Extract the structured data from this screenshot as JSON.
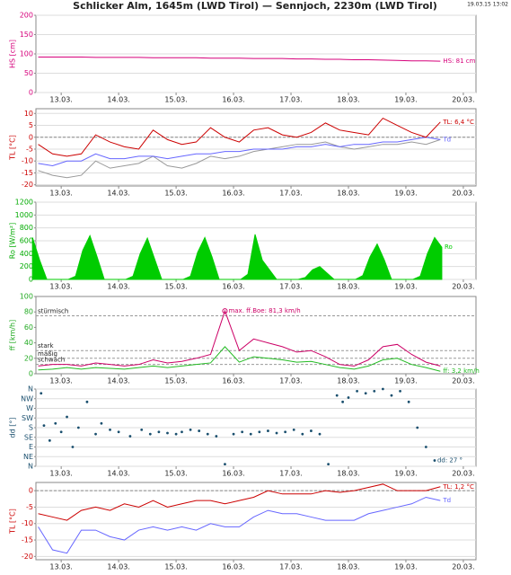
{
  "title": "Schlicker Alm, 1645m (LWD Tirol) — Sennjoch, 2230m (LWD Tirol)",
  "timestamp": "19.03.15 13:02",
  "chart_data": [
    {
      "type": "line",
      "ylabel": "HS [cm]",
      "label_color": "#d6007b",
      "x": [
        12.6,
        12.85,
        13.1,
        13.35,
        13.6,
        13.85,
        14.1,
        14.35,
        14.6,
        14.85,
        15.1,
        15.35,
        15.6,
        15.85,
        16.1,
        16.35,
        16.6,
        16.85,
        17.1,
        17.35,
        17.6,
        17.85,
        18.1,
        18.35,
        18.6,
        18.85,
        19.1,
        19.35,
        19.6
      ],
      "series": [
        {
          "color": "#d6007b",
          "end_label": "HS: 81 cm",
          "values": [
            92,
            92,
            92,
            92,
            91,
            91,
            91,
            91,
            90,
            90,
            90,
            90,
            89,
            89,
            89,
            88,
            88,
            88,
            87,
            87,
            86,
            86,
            85,
            85,
            84,
            83,
            82,
            82,
            81
          ]
        }
      ],
      "xlim": [
        12.56,
        20.22
      ],
      "ylim": [
        0,
        200
      ],
      "yticks": [
        0,
        50,
        100,
        150,
        200
      ],
      "xticks": [
        {
          "value": 13,
          "label": "13.03."
        },
        {
          "value": 14,
          "label": "14.03."
        },
        {
          "value": 15,
          "label": "15.03."
        },
        {
          "value": 16,
          "label": "16.03."
        },
        {
          "value": 17,
          "label": "17.03."
        },
        {
          "value": 18,
          "label": "18.03."
        },
        {
          "value": 19,
          "label": "19.03."
        },
        {
          "value": 20,
          "label": "20.03."
        }
      ],
      "grid": true
    },
    {
      "type": "line",
      "ylabel": "TL [°C]",
      "label_color": "#cc0000",
      "x": [
        12.6,
        12.85,
        13.1,
        13.35,
        13.6,
        13.85,
        14.1,
        14.35,
        14.6,
        14.85,
        15.1,
        15.35,
        15.6,
        15.85,
        16.1,
        16.35,
        16.6,
        16.85,
        17.1,
        17.35,
        17.6,
        17.85,
        18.1,
        18.35,
        18.6,
        18.85,
        19.1,
        19.35,
        19.6
      ],
      "series": [
        {
          "color": "#999999",
          "values": [
            -14,
            -16,
            -17,
            -16,
            -10,
            -13,
            -12,
            -11,
            -8,
            -12,
            -13,
            -11,
            -8,
            -9,
            -8,
            -6,
            -5,
            -4,
            -3,
            -3,
            -2,
            -4,
            -5,
            -4,
            -3,
            -3,
            -2,
            -3,
            -1
          ]
        },
        {
          "color": "#6666ff",
          "end_label": "Td",
          "values": [
            -11,
            -12,
            -10,
            -10,
            -7,
            -9,
            -9,
            -8,
            -8,
            -9,
            -8,
            -7,
            -7,
            -6,
            -6,
            -5,
            -5,
            -5,
            -4,
            -4,
            -3,
            -4,
            -3,
            -3,
            -2,
            -2,
            -1,
            0,
            -1
          ]
        },
        {
          "color": "#cc0000",
          "end_label": "TL: 6,4 °C",
          "values": [
            -3,
            -7,
            -8,
            -7,
            1,
            -2,
            -4,
            -5,
            3,
            -1,
            -3,
            -2,
            4,
            0,
            -2,
            3,
            4,
            1,
            0,
            2,
            6,
            3,
            2,
            1,
            8,
            5,
            2,
            0,
            6.4
          ]
        }
      ],
      "xlim": [
        12.56,
        20.22
      ],
      "ylim": [
        -20.5,
        12
      ],
      "yticks": [
        -20,
        -15,
        -10,
        -5,
        0,
        5,
        10
      ],
      "xticks": [
        {
          "value": 13,
          "label": "13.03."
        },
        {
          "value": 14,
          "label": "14.03."
        },
        {
          "value": 15,
          "label": "15.03."
        },
        {
          "value": 16,
          "label": "16.03."
        },
        {
          "value": 17,
          "label": "17.03."
        },
        {
          "value": 18,
          "label": "18.03."
        },
        {
          "value": 19,
          "label": "19.03."
        },
        {
          "value": 20,
          "label": "20.03."
        }
      ],
      "grid": true,
      "zero_line": true
    },
    {
      "type": "area",
      "ylabel": "Ro [W/m²]",
      "label_color": "#00aa00",
      "x": [
        12.5,
        12.625,
        12.75,
        12.875,
        13,
        13.125,
        13.25,
        13.375,
        13.5,
        13.625,
        13.75,
        13.875,
        14,
        14.125,
        14.25,
        14.375,
        14.5,
        14.625,
        14.75,
        14.875,
        15,
        15.125,
        15.25,
        15.375,
        15.5,
        15.625,
        15.75,
        15.875,
        16,
        16.125,
        16.25,
        16.375,
        16.5,
        16.625,
        16.75,
        16.875,
        17,
        17.125,
        17.25,
        17.375,
        17.5,
        17.625,
        17.75,
        17.875,
        18,
        18.125,
        18.25,
        18.375,
        18.5,
        18.625,
        18.75,
        18.875,
        19,
        19.125,
        19.25,
        19.375,
        19.5,
        19.625
      ],
      "series": [
        {
          "color": "#00cc00",
          "end_label": "Ro",
          "values": [
            650,
            300,
            0,
            0,
            0,
            0,
            50,
            450,
            680,
            350,
            0,
            0,
            0,
            0,
            50,
            400,
            640,
            320,
            0,
            0,
            0,
            0,
            50,
            420,
            650,
            350,
            0,
            0,
            0,
            0,
            80,
            700,
            300,
            150,
            0,
            0,
            0,
            0,
            30,
            150,
            200,
            100,
            0,
            0,
            0,
            0,
            60,
            350,
            550,
            300,
            0,
            0,
            0,
            0,
            50,
            400,
            650,
            500
          ]
        }
      ],
      "xlim": [
        12.56,
        20.22
      ],
      "ylim": [
        0,
        1200
      ],
      "yticks": [
        0,
        200,
        400,
        600,
        800,
        1000,
        1200
      ],
      "xticks": [
        {
          "value": 13,
          "label": "13.03."
        },
        {
          "value": 14,
          "label": "14.03."
        },
        {
          "value": 15,
          "label": "15.03."
        },
        {
          "value": 16,
          "label": "16.03."
        },
        {
          "value": 17,
          "label": "17.03."
        },
        {
          "value": 18,
          "label": "18.03."
        },
        {
          "value": 19,
          "label": "19.03."
        },
        {
          "value": 20,
          "label": "20.03."
        }
      ],
      "grid": true
    },
    {
      "type": "line",
      "ylabel": "ff [km/h]",
      "label_color": "#22aa22",
      "x": [
        12.6,
        12.85,
        13.1,
        13.35,
        13.6,
        13.85,
        14.1,
        14.35,
        14.6,
        14.85,
        15.1,
        15.35,
        15.6,
        15.85,
        16.1,
        16.35,
        16.6,
        16.85,
        17.1,
        17.35,
        17.6,
        17.85,
        18.1,
        18.35,
        18.6,
        18.85,
        19.1,
        19.35,
        19.6
      ],
      "series": [
        {
          "color": "#cc0066",
          "max_label": "max. ff.Boe: 81,3 km/h",
          "values": [
            10,
            12,
            12,
            10,
            14,
            12,
            10,
            12,
            18,
            14,
            16,
            20,
            25,
            81.3,
            30,
            45,
            40,
            35,
            28,
            30,
            22,
            12,
            10,
            18,
            35,
            38,
            25,
            15,
            10
          ]
        },
        {
          "color": "#22bb22",
          "end_label": "ff: 3,2 km/h",
          "values": [
            5,
            6,
            8,
            6,
            8,
            7,
            6,
            8,
            10,
            8,
            10,
            12,
            14,
            35,
            15,
            22,
            20,
            18,
            15,
            16,
            12,
            8,
            6,
            10,
            18,
            20,
            12,
            8,
            3.2
          ]
        }
      ],
      "thresholds": [
        {
          "value": 75,
          "label": "stürmisch"
        },
        {
          "value": 30,
          "label": "stark"
        },
        {
          "value": 20,
          "label": "mäßig"
        },
        {
          "value": 12,
          "label": "schwach"
        }
      ],
      "xlim": [
        12.56,
        20.22
      ],
      "ylim": [
        0,
        100
      ],
      "yticks": [
        0,
        20,
        40,
        60,
        80,
        100
      ],
      "xticks": [
        {
          "value": 13,
          "label": "13.03."
        },
        {
          "value": 14,
          "label": "14.03."
        },
        {
          "value": 15,
          "label": "15.03."
        },
        {
          "value": 16,
          "label": "16.03."
        },
        {
          "value": 17,
          "label": "17.03."
        },
        {
          "value": 18,
          "label": "18.03."
        },
        {
          "value": 19,
          "label": "19.03."
        },
        {
          "value": 20,
          "label": "20.03."
        }
      ],
      "grid": false
    },
    {
      "type": "scatter",
      "ylabel": "dd [°]",
      "label_color": "#1a4f6e",
      "x": [
        12.65,
        12.7,
        12.8,
        12.9,
        13.0,
        13.1,
        13.2,
        13.3,
        13.45,
        13.6,
        13.7,
        13.85,
        14.0,
        14.2,
        14.4,
        14.55,
        14.7,
        14.85,
        15.0,
        15.1,
        15.25,
        15.4,
        15.55,
        15.7,
        15.85,
        16.0,
        16.15,
        16.3,
        16.45,
        16.6,
        16.75,
        16.9,
        17.05,
        17.2,
        17.35,
        17.5,
        17.65,
        17.8,
        17.9,
        18.0,
        18.15,
        18.3,
        18.45,
        18.6,
        18.75,
        18.9,
        19.05,
        19.2,
        19.35,
        19.5
      ],
      "series": [
        {
          "color": "#1a4f6e",
          "end_label": "dd: 27 °",
          "values": [
            340,
            190,
            120,
            200,
            160,
            230,
            90,
            180,
            300,
            150,
            200,
            170,
            160,
            140,
            170,
            150,
            160,
            155,
            150,
            160,
            170,
            165,
            150,
            140,
            10,
            150,
            160,
            150,
            160,
            165,
            155,
            160,
            170,
            150,
            165,
            150,
            10,
            330,
            300,
            320,
            350,
            340,
            350,
            360,
            330,
            350,
            300,
            180,
            90,
            27
          ]
        }
      ],
      "xlim": [
        12.56,
        20.22
      ],
      "ylim": [
        0,
        360
      ],
      "yticks": [
        {
          "value": 0,
          "label": "N"
        },
        {
          "value": 45,
          "label": "NE"
        },
        {
          "value": 90,
          "label": "E"
        },
        {
          "value": 135,
          "label": "SE"
        },
        {
          "value": 180,
          "label": "S"
        },
        {
          "value": 225,
          "label": "SW"
        },
        {
          "value": 270,
          "label": "W"
        },
        {
          "value": 315,
          "label": "NW"
        },
        {
          "value": 360,
          "label": "N"
        }
      ],
      "xticks": [
        {
          "value": 13,
          "label": "13.03."
        },
        {
          "value": 14,
          "label": "14.03."
        },
        {
          "value": 15,
          "label": "15.03."
        },
        {
          "value": 16,
          "label": "16.03."
        },
        {
          "value": 17,
          "label": "17.03."
        },
        {
          "value": 18,
          "label": "18.03."
        },
        {
          "value": 19,
          "label": "19.03."
        },
        {
          "value": 20,
          "label": "20.03."
        }
      ],
      "grid": true
    },
    {
      "type": "line",
      "ylabel": "TL [°C]",
      "label_color": "#cc0000",
      "x": [
        12.6,
        12.85,
        13.1,
        13.35,
        13.6,
        13.85,
        14.1,
        14.35,
        14.6,
        14.85,
        15.1,
        15.35,
        15.6,
        15.85,
        16.1,
        16.35,
        16.6,
        16.85,
        17.1,
        17.35,
        17.6,
        17.85,
        18.1,
        18.35,
        18.6,
        18.85,
        19.1,
        19.35,
        19.6
      ],
      "series": [
        {
          "color": "#6666ff",
          "end_label": "Td",
          "values": [
            -11,
            -18,
            -19,
            -12,
            -12,
            -14,
            -15,
            -12,
            -11,
            -12,
            -11,
            -12,
            -10,
            -11,
            -11,
            -8,
            -6,
            -7,
            -7,
            -8,
            -9,
            -9,
            -9,
            -7,
            -6,
            -5,
            -4,
            -2,
            -3
          ]
        },
        {
          "color": "#cc0000",
          "end_label": "TL: 1,2 °C",
          "values": [
            -7,
            -8,
            -9,
            -6,
            -5,
            -6,
            -4,
            -5,
            -3,
            -5,
            -4,
            -3,
            -3,
            -4,
            -3,
            -2,
            0,
            -1,
            -1,
            -1,
            0,
            -0.5,
            0,
            1,
            2,
            0,
            0,
            0,
            1.2
          ]
        }
      ],
      "xlim": [
        12.56,
        20.22
      ],
      "ylim": [
        -21,
        2.5
      ],
      "yticks": [
        -20,
        -15,
        -10,
        -5,
        0
      ],
      "xticks": [
        {
          "value": 13,
          "label": "13.03."
        },
        {
          "value": 14,
          "label": "14.03."
        },
        {
          "value": 15,
          "label": "15.03."
        },
        {
          "value": 16,
          "label": "16.03."
        },
        {
          "value": 17,
          "label": "17.03."
        },
        {
          "value": 18,
          "label": "18.03."
        },
        {
          "value": 19,
          "label": "19.03."
        },
        {
          "value": 20,
          "label": "20.03."
        }
      ],
      "grid": true,
      "zero_line": true
    }
  ]
}
